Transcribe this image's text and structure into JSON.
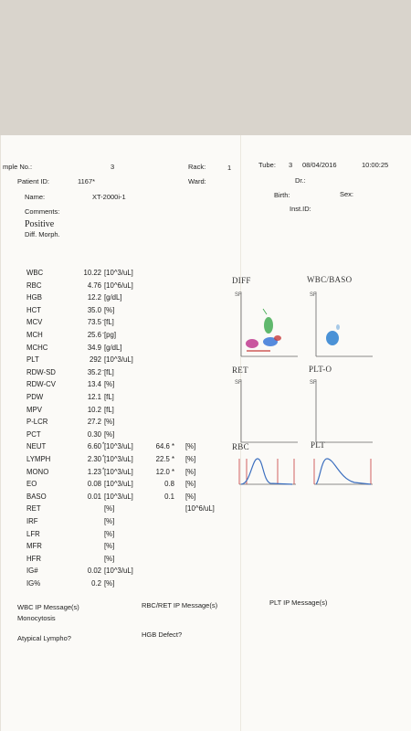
{
  "header": {
    "sample_no_label": "mple No.:",
    "sample_no": "3",
    "rack_label": "Rack:",
    "rack": "1",
    "tube_label": "Tube:",
    "tube": "3",
    "date": "08/04/2016",
    "time": "10:00:25",
    "patient_id_label": "Patient ID:",
    "patient_id": "1167*",
    "ward_label": "Ward:",
    "dr_label": "Dr.:",
    "name_label": "Name:",
    "name": "XT-2000i-1",
    "birth_label": "Birth:",
    "sex_label": "Sex:",
    "comments_label": "Comments:",
    "inst_label": "Inst.ID:",
    "positive": "Positive",
    "diff_morph": "Diff. Morph."
  },
  "results": [
    {
      "name": "WBC",
      "value": "10.22",
      "flag": "",
      "unit": "[10^3/uL]",
      "pct": "",
      "pct_unit": ""
    },
    {
      "name": "RBC",
      "value": "4.76",
      "flag": "",
      "unit": "[10^6/uL]",
      "pct": "",
      "pct_unit": ""
    },
    {
      "name": "HGB",
      "value": "12.2",
      "flag": "",
      "unit": "[g/dL]",
      "pct": "",
      "pct_unit": ""
    },
    {
      "name": "HCT",
      "value": "35.0",
      "flag": "",
      "unit": "[%]",
      "pct": "",
      "pct_unit": ""
    },
    {
      "name": "MCV",
      "value": "73.5",
      "flag": "-",
      "unit": "[fL]",
      "pct": "",
      "pct_unit": ""
    },
    {
      "name": "MCH",
      "value": "25.6",
      "flag": "-",
      "unit": "[pg]",
      "pct": "",
      "pct_unit": ""
    },
    {
      "name": "MCHC",
      "value": "34.9",
      "flag": "",
      "unit": "[g/dL]",
      "pct": "",
      "pct_unit": ""
    },
    {
      "name": "PLT",
      "value": "292",
      "flag": "",
      "unit": "[10^3/uL]",
      "pct": "",
      "pct_unit": ""
    },
    {
      "name": "RDW-SD",
      "value": "35.2",
      "flag": "-",
      "unit": "[fL]",
      "pct": "",
      "pct_unit": ""
    },
    {
      "name": "RDW-CV",
      "value": "13.4",
      "flag": "",
      "unit": "[%]",
      "pct": "",
      "pct_unit": ""
    },
    {
      "name": "PDW",
      "value": "12.1",
      "flag": "",
      "unit": "[fL]",
      "pct": "",
      "pct_unit": ""
    },
    {
      "name": "MPV",
      "value": "10.2",
      "flag": "",
      "unit": "[fL]",
      "pct": "",
      "pct_unit": ""
    },
    {
      "name": "P-LCR",
      "value": "27.2",
      "flag": "",
      "unit": "[%]",
      "pct": "",
      "pct_unit": ""
    },
    {
      "name": "PCT",
      "value": "0.30",
      "flag": "",
      "unit": "[%]",
      "pct": "",
      "pct_unit": ""
    },
    {
      "name": "NEUT",
      "value": "6.60",
      "flag": "*",
      "unit": "[10^3/uL]",
      "pct": "64.6 *",
      "pct_unit": "[%]"
    },
    {
      "name": "LYMPH",
      "value": "2.30",
      "flag": "*",
      "unit": "[10^3/uL]",
      "pct": "22.5 *",
      "pct_unit": "[%]"
    },
    {
      "name": "MONO",
      "value": "1.23",
      "flag": "*",
      "unit": "[10^3/uL]",
      "pct": "12.0 *",
      "pct_unit": "[%]"
    },
    {
      "name": "EO",
      "value": "0.08",
      "flag": "",
      "unit": "[10^3/uL]",
      "pct": "0.8",
      "pct_unit": "[%]"
    },
    {
      "name": "BASO",
      "value": "0.01",
      "flag": "",
      "unit": "[10^3/uL]",
      "pct": "0.1",
      "pct_unit": "[%]"
    },
    {
      "name": "RET",
      "value": "",
      "flag": "",
      "unit": "[%]",
      "pct": "",
      "pct_unit": "[10^6/uL]"
    },
    {
      "name": "IRF",
      "value": "",
      "flag": "",
      "unit": "[%]",
      "pct": "",
      "pct_unit": ""
    },
    {
      "name": "LFR",
      "value": "",
      "flag": "",
      "unit": "[%]",
      "pct": "",
      "pct_unit": ""
    },
    {
      "name": "MFR",
      "value": "",
      "flag": "",
      "unit": "[%]",
      "pct": "",
      "pct_unit": ""
    },
    {
      "name": "HFR",
      "value": "",
      "flag": "",
      "unit": "[%]",
      "pct": "",
      "pct_unit": ""
    },
    {
      "name": "IG#",
      "value": "0.02",
      "flag": "",
      "unit": "[10^3/uL]",
      "pct": "",
      "pct_unit": ""
    },
    {
      "name": "IG%",
      "value": "0.2",
      "flag": "",
      "unit": "[%]",
      "pct": "",
      "pct_unit": ""
    }
  ],
  "graphs": {
    "diff": "DIFF",
    "wbc_baso": "WBC/BASO",
    "ret": "RET",
    "plt_o": "PLT-O",
    "rbc": "RBC",
    "plt": "PLT",
    "axis_mark": "SF"
  },
  "messages": {
    "wbc_ip_label": "WBC IP Message(s)",
    "wbc_ip_1": "Monocytosis",
    "wbc_ip_2": "Atypical Lympho?",
    "rbc_ret_ip_label": "RBC/RET IP Message(s)",
    "rbc_ret_ip_1": "HGB Defect?",
    "plt_ip_label": "PLT IP Message(s)"
  },
  "colors": {
    "neut_cluster": "#3aa84a",
    "lymph_cluster": "#c0398f",
    "mono_cluster": "#2d6fd6",
    "eo_cluster": "#c73a3a",
    "wbc_baso_cluster": "#2b7fd0",
    "histogram_line": "#3c6fbf"
  }
}
